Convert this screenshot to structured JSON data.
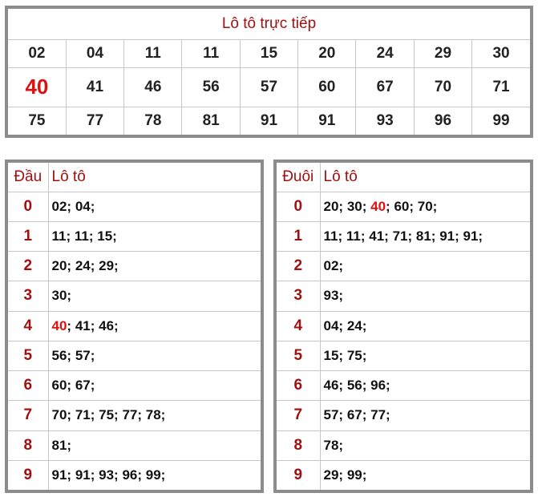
{
  "live": {
    "title": "Lô tô trực tiếp",
    "highlight": "40",
    "rows": [
      [
        "02",
        "04",
        "11",
        "11",
        "15",
        "20",
        "24",
        "29",
        "30"
      ],
      [
        "40",
        "41",
        "46",
        "56",
        "57",
        "60",
        "67",
        "70",
        "71"
      ],
      [
        "75",
        "77",
        "78",
        "81",
        "91",
        "91",
        "93",
        "96",
        "99"
      ]
    ]
  },
  "dau": {
    "key_header": "Đầu",
    "values_header": "Lô tô",
    "rows": [
      {
        "key": "0",
        "values": [
          "02",
          "04"
        ]
      },
      {
        "key": "1",
        "values": [
          "11",
          "11",
          "15"
        ]
      },
      {
        "key": "2",
        "values": [
          "20",
          "24",
          "29"
        ]
      },
      {
        "key": "3",
        "values": [
          "30"
        ]
      },
      {
        "key": "4",
        "values": [
          "40",
          "41",
          "46"
        ]
      },
      {
        "key": "5",
        "values": [
          "56",
          "57"
        ]
      },
      {
        "key": "6",
        "values": [
          "60",
          "67"
        ]
      },
      {
        "key": "7",
        "values": [
          "70",
          "71",
          "75",
          "77",
          "78"
        ]
      },
      {
        "key": "8",
        "values": [
          "81"
        ]
      },
      {
        "key": "9",
        "values": [
          "91",
          "91",
          "93",
          "96",
          "99"
        ]
      }
    ]
  },
  "duoi": {
    "key_header": "Đuôi",
    "values_header": "Lô tô",
    "rows": [
      {
        "key": "0",
        "values": [
          "20",
          "30",
          "40",
          "60",
          "70"
        ]
      },
      {
        "key": "1",
        "values": [
          "11",
          "11",
          "41",
          "71",
          "81",
          "91",
          "91"
        ]
      },
      {
        "key": "2",
        "values": [
          "02"
        ]
      },
      {
        "key": "3",
        "values": [
          "93"
        ]
      },
      {
        "key": "4",
        "values": [
          "04",
          "24"
        ]
      },
      {
        "key": "5",
        "values": [
          "15",
          "75"
        ]
      },
      {
        "key": "6",
        "values": [
          "46",
          "56",
          "96"
        ]
      },
      {
        "key": "7",
        "values": [
          "57",
          "67",
          "77"
        ]
      },
      {
        "key": "8",
        "values": [
          "78"
        ]
      },
      {
        "key": "9",
        "values": [
          "29",
          "99"
        ]
      }
    ]
  },
  "colors": {
    "label": "#a01010",
    "highlight": "#e01010",
    "border": "#8c8c8c"
  }
}
